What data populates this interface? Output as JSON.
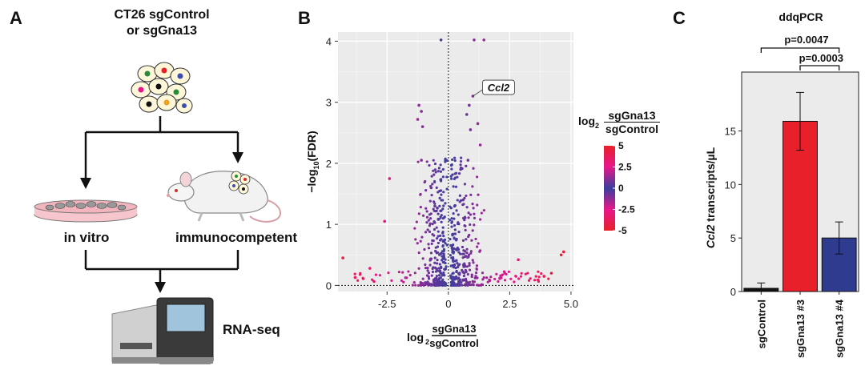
{
  "panel_a": {
    "letter": "A",
    "title_line1": "CT26 sgControl",
    "title_line2": "or sgGna13",
    "left_label": "in vitro",
    "right_label": "immunocompetent",
    "bottom_label": "RNA-seq"
  },
  "panel_b": {
    "letter": "B",
    "legend_title_prefix": "log",
    "legend_sub": "2",
    "legend_numerator": "sgGna13",
    "legend_denominator": "sgControl",
    "colors": {
      "high": "#e8202a",
      "mid": "#3a3f9e",
      "low": "#e8202a",
      "magenta": "#e8168a"
    }
  },
  "panel_c": {
    "letter": "C",
    "title": "ddqPCR",
    "pvalue_top": "p=0.0047",
    "pvalue_bottom": "p=0.0003",
    "colors": [
      "#111111",
      "#e8202a",
      "#2e3b8f"
    ]
  },
  "chart_data": [
    {
      "type": "scatter",
      "title": "",
      "xlabel": "log2 sgGna13/sgControl",
      "xlabel_prefix": "log",
      "xlabel_sub": "2",
      "xlabel_num": "sgGna13",
      "xlabel_den": "sgControl",
      "ylabel": "−log10(FDR)",
      "ylabel_prefix": "−log",
      "ylabel_sub": "10",
      "ylabel_suffix": "(FDR)",
      "xlim": [
        -4.5,
        5.1
      ],
      "ylim": [
        -0.1,
        4.15
      ],
      "x_ticks": [
        -2.5,
        0,
        2.5,
        5.0
      ],
      "x_tick_labels": [
        "-2.5",
        "0",
        "2.5",
        "5.0"
      ],
      "y_ticks": [
        0,
        1,
        2,
        3,
        4
      ],
      "y_tick_labels": [
        "0",
        "1",
        "2",
        "3",
        "4"
      ],
      "annotation": {
        "label": "Ccl2",
        "x": 1.0,
        "y": 3.1
      },
      "color_scale": {
        "min": -5,
        "max": 5,
        "ticks": [
          5,
          2.5,
          0,
          -2.5,
          -5
        ],
        "tick_labels": [
          "5",
          "2.5",
          "0",
          "-2.5",
          "-5"
        ]
      },
      "points": [
        {
          "x": -0.3,
          "y": 4.02
        },
        {
          "x": 1.05,
          "y": 4.02
        },
        {
          "x": 1.45,
          "y": 4.02
        },
        {
          "x": 1.0,
          "y": 3.1
        },
        {
          "x": -1.2,
          "y": 2.95
        },
        {
          "x": 0.85,
          "y": 2.95
        },
        {
          "x": -1.1,
          "y": 2.85
        },
        {
          "x": 0.75,
          "y": 2.8
        },
        {
          "x": -1.25,
          "y": 2.72
        },
        {
          "x": 1.2,
          "y": 2.65
        },
        {
          "x": -1.05,
          "y": 2.6
        },
        {
          "x": 0.9,
          "y": 2.55
        },
        {
          "x": 1.3,
          "y": 2.3
        },
        {
          "x": -1.1,
          "y": 2.05
        },
        {
          "x": 0.8,
          "y": 2.05
        },
        {
          "x": -4.3,
          "y": 0.45
        },
        {
          "x": -2.4,
          "y": 1.75
        },
        {
          "x": 4.6,
          "y": 0.5
        },
        {
          "x": 4.7,
          "y": 0.55
        },
        {
          "x": -2.6,
          "y": 1.05
        },
        {
          "x": 2.85,
          "y": 0.42
        },
        {
          "x": -3.2,
          "y": 0.28
        },
        {
          "x": 2.3,
          "y": 0.2
        },
        {
          "x": -0.55,
          "y": 1.3
        },
        {
          "x": 0.6,
          "y": 1.4
        },
        {
          "x": 0.5,
          "y": 1.9
        },
        {
          "x": -0.7,
          "y": 1.6
        },
        {
          "x": 3.9,
          "y": 0.15
        },
        {
          "x": -3.8,
          "y": 0.13
        },
        {
          "x": 4.2,
          "y": 0.2
        }
      ]
    },
    {
      "type": "bar",
      "title": "ddqPCR",
      "xlabel": "",
      "ylabel": "Ccl2 transcripts/µL",
      "ylabel_italic": "Ccl2",
      "ylabel_rest": " transcripts/µL",
      "ylim": [
        0,
        20.5
      ],
      "y_ticks": [
        0,
        5,
        10,
        15
      ],
      "y_tick_labels": [
        "0",
        "5",
        "10",
        "15"
      ],
      "categories": [
        "sgControl",
        "sgGna13 #3",
        "sgGna13 #4"
      ],
      "values": [
        0.3,
        15.9,
        5.0
      ],
      "errors": [
        0.5,
        2.7,
        1.5
      ]
    }
  ]
}
